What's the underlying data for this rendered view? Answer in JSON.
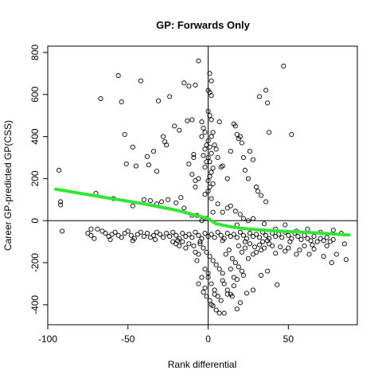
{
  "chart_data": {
    "type": "scatter",
    "title": "GP: Forwards Only",
    "xlabel": "Rank differential",
    "ylabel": "Career GP-predicted GP(CSS)",
    "xlim": [
      -100,
      93
    ],
    "ylim": [
      -495,
      830
    ],
    "x_ticks": [
      -100,
      -50,
      0,
      50
    ],
    "y_ticks": [
      -400,
      -200,
      0,
      200,
      400,
      600,
      800
    ],
    "x_tick_labels": [
      "-100",
      "-50",
      "0",
      "50"
    ],
    "y_tick_labels": [
      "-400",
      "-200",
      "0",
      "200",
      "400",
      "600",
      "800"
    ],
    "reference_lines": {
      "vertical_x": 0,
      "horizontal_y": 0
    },
    "grid": false,
    "legend": "none",
    "colors": {
      "points": "#000000",
      "trend": "#33e633"
    },
    "series": [
      {
        "kind": "points",
        "marker": "open-circle",
        "points": [
          [
            -93,
            240
          ],
          [
            -92,
            90
          ],
          [
            -92,
            75
          ],
          [
            -91,
            -50
          ],
          [
            -67,
            580
          ],
          [
            -56,
            690
          ],
          [
            -54,
            565
          ],
          [
            -52,
            410
          ],
          [
            -51,
            270
          ],
          [
            -47,
            350
          ],
          [
            -45,
            260
          ],
          [
            -42,
            665
          ],
          [
            -38,
            305
          ],
          [
            -37,
            265
          ],
          [
            -34,
            330
          ],
          [
            -31,
            570
          ],
          [
            -32,
            235
          ],
          [
            -28,
            400
          ],
          [
            -27,
            375
          ],
          [
            -26,
            360
          ],
          [
            -24,
            590
          ],
          [
            -21,
            450
          ],
          [
            -18,
            430
          ],
          [
            -15,
            655
          ],
          [
            -12,
            640
          ],
          [
            -8,
            645
          ],
          [
            -13,
            475
          ],
          [
            -10,
            480
          ],
          [
            -8,
            190
          ],
          [
            -6,
            200
          ],
          [
            -9,
            315
          ],
          [
            -9,
            300
          ],
          [
            -12,
            270
          ],
          [
            -10,
            220
          ],
          [
            -8,
            160
          ],
          [
            -6,
            760
          ],
          [
            -4,
            470
          ],
          [
            -3,
            440
          ],
          [
            -2,
            420
          ],
          [
            -4,
            400
          ],
          [
            -1,
            360
          ],
          [
            -2,
            340
          ],
          [
            -3,
            310
          ],
          [
            -1,
            280
          ],
          [
            -2,
            255
          ],
          [
            1,
            700
          ],
          [
            2,
            665
          ],
          [
            0,
            620
          ],
          [
            1,
            610
          ],
          [
            2,
            595
          ],
          [
            0,
            520
          ],
          [
            1,
            500
          ],
          [
            2,
            480
          ],
          [
            3,
            420
          ],
          [
            2,
            400
          ],
          [
            0,
            380
          ],
          [
            1,
            350
          ],
          [
            2,
            320
          ],
          [
            0,
            300
          ],
          [
            1,
            280
          ],
          [
            3,
            250
          ],
          [
            2,
            230
          ],
          [
            1,
            210
          ],
          [
            0,
            190
          ],
          [
            3,
            175
          ],
          [
            1,
            160
          ],
          [
            0,
            140
          ],
          [
            -2,
            125
          ],
          [
            2,
            105
          ],
          [
            4,
            360
          ],
          [
            5,
            340
          ],
          [
            6,
            300
          ],
          [
            7,
            470
          ],
          [
            8,
            255
          ],
          [
            9,
            260
          ],
          [
            12,
            200
          ],
          [
            14,
            330
          ],
          [
            16,
            460
          ],
          [
            17,
            450
          ],
          [
            18,
            410
          ],
          [
            20,
            400
          ],
          [
            19,
            390
          ],
          [
            21,
            370
          ],
          [
            22,
            300
          ],
          [
            23,
            240
          ],
          [
            25,
            200
          ],
          [
            26,
            330
          ],
          [
            28,
            290
          ],
          [
            30,
            160
          ],
          [
            32,
            590
          ],
          [
            36,
            620
          ],
          [
            37,
            560
          ],
          [
            38,
            420
          ],
          [
            33,
            120
          ],
          [
            31,
            140
          ],
          [
            36,
            90
          ],
          [
            47,
            735
          ],
          [
            52,
            410
          ],
          [
            -70,
            130
          ],
          [
            -59,
            105
          ],
          [
            -47,
            70
          ],
          [
            -40,
            100
          ],
          [
            -36,
            95
          ],
          [
            -32,
            80
          ],
          [
            -29,
            90
          ],
          [
            -25,
            100
          ],
          [
            -20,
            85
          ],
          [
            -17,
            110
          ],
          [
            -15,
            60
          ],
          [
            -10,
            25
          ],
          [
            -7,
            25
          ],
          [
            -4,
            0
          ],
          [
            -1,
            10
          ],
          [
            3,
            40
          ],
          [
            6,
            80
          ],
          [
            9,
            40
          ],
          [
            12,
            60
          ],
          [
            14,
            70
          ],
          [
            17,
            45
          ],
          [
            20,
            30
          ],
          [
            22,
            10
          ],
          [
            25,
            0
          ],
          [
            18,
            -20
          ],
          [
            28,
            10
          ],
          [
            35,
            -15
          ],
          [
            42,
            -40
          ],
          [
            48,
            -20
          ],
          [
            55,
            -50
          ],
          [
            62,
            -40
          ],
          [
            70,
            -55
          ],
          [
            78,
            -45
          ],
          [
            83,
            -60
          ],
          [
            -75,
            -60
          ],
          [
            -73,
            -70
          ],
          [
            -71,
            -85
          ],
          [
            -69,
            -40
          ],
          [
            -66,
            -50
          ],
          [
            -64,
            -60
          ],
          [
            -62,
            -75
          ],
          [
            -60,
            -65
          ],
          [
            -58,
            -55
          ],
          [
            -56,
            -70
          ],
          [
            -54,
            -80
          ],
          [
            -52,
            -60
          ],
          [
            -50,
            -50
          ],
          [
            -48,
            -70
          ],
          [
            -46,
            -85
          ],
          [
            -44,
            -65
          ],
          [
            -42,
            -55
          ],
          [
            -40,
            -75
          ],
          [
            -38,
            -60
          ],
          [
            -36,
            -80
          ],
          [
            -34,
            -70
          ],
          [
            -32,
            -55
          ],
          [
            -30,
            -65
          ],
          [
            -28,
            -80
          ],
          [
            -26,
            -60
          ],
          [
            -24,
            -75
          ],
          [
            -22,
            -55
          ],
          [
            -20,
            -70
          ],
          [
            -18,
            -85
          ],
          [
            -16,
            -60
          ],
          [
            -14,
            -75
          ],
          [
            -12,
            -65
          ],
          [
            -10,
            -80
          ],
          [
            -8,
            -55
          ],
          [
            -6,
            -70
          ],
          [
            -4,
            -85
          ],
          [
            -2,
            -60
          ],
          [
            0,
            -75
          ],
          [
            2,
            -65
          ],
          [
            4,
            -80
          ],
          [
            6,
            -55
          ],
          [
            8,
            -70
          ],
          [
            10,
            -85
          ],
          [
            12,
            -60
          ],
          [
            14,
            -75
          ],
          [
            16,
            -65
          ],
          [
            18,
            -80
          ],
          [
            20,
            -55
          ],
          [
            22,
            -70
          ],
          [
            24,
            -85
          ],
          [
            26,
            -60
          ],
          [
            28,
            -75
          ],
          [
            30,
            -65
          ],
          [
            32,
            -80
          ],
          [
            34,
            -55
          ],
          [
            36,
            -70
          ],
          [
            38,
            -85
          ],
          [
            40,
            -60
          ],
          [
            42,
            -75
          ],
          [
            44,
            -65
          ],
          [
            46,
            -80
          ],
          [
            48,
            -55
          ],
          [
            50,
            -70
          ],
          [
            52,
            -85
          ],
          [
            54,
            -60
          ],
          [
            56,
            -75
          ],
          [
            58,
            -90
          ],
          [
            60,
            -70
          ],
          [
            62,
            -85
          ],
          [
            64,
            -95
          ],
          [
            66,
            -75
          ],
          [
            68,
            -100
          ],
          [
            70,
            -85
          ],
          [
            72,
            -95
          ],
          [
            74,
            -80
          ],
          [
            76,
            -100
          ],
          [
            78,
            -90
          ],
          [
            -73,
            -40
          ],
          [
            -61,
            -90
          ],
          [
            -47,
            -95
          ],
          [
            -33,
            -90
          ],
          [
            -19,
            -95
          ],
          [
            -5,
            -100
          ],
          [
            9,
            -95
          ],
          [
            23,
            -100
          ],
          [
            37,
            -95
          ],
          [
            51,
            -100
          ],
          [
            65,
            -115
          ],
          [
            -5,
            -110
          ],
          [
            -3,
            -130
          ],
          [
            -1,
            -150
          ],
          [
            1,
            -170
          ],
          [
            3,
            -190
          ],
          [
            5,
            -210
          ],
          [
            7,
            -230
          ],
          [
            9,
            -250
          ],
          [
            11,
            -160
          ],
          [
            13,
            -140
          ],
          [
            15,
            -180
          ],
          [
            17,
            -200
          ],
          [
            19,
            -220
          ],
          [
            21,
            -240
          ],
          [
            -6,
            -160
          ],
          [
            -7,
            -190
          ],
          [
            -8,
            -150
          ],
          [
            -2,
            -230
          ],
          [
            0,
            -270
          ],
          [
            2,
            -300
          ],
          [
            4,
            -330
          ],
          [
            6,
            -360
          ],
          [
            8,
            -380
          ],
          [
            10,
            -300
          ],
          [
            12,
            -330
          ],
          [
            14,
            -350
          ],
          [
            16,
            -310
          ],
          [
            18,
            -280
          ],
          [
            22,
            -260
          ],
          [
            25,
            -180
          ],
          [
            28,
            -160
          ],
          [
            30,
            -150
          ],
          [
            33,
            -140
          ],
          [
            35,
            -130
          ],
          [
            40,
            -120
          ],
          [
            42,
            -155
          ],
          [
            45,
            -125
          ],
          [
            48,
            -145
          ],
          [
            50,
            -130
          ],
          [
            55,
            -160
          ],
          [
            57,
            -140
          ],
          [
            60,
            -120
          ],
          [
            63,
            -160
          ],
          [
            66,
            -135
          ],
          [
            72,
            -170
          ],
          [
            74,
            -120
          ],
          [
            77,
            -200
          ],
          [
            80,
            -160
          ],
          [
            85,
            -110
          ],
          [
            -6,
            -300
          ],
          [
            -3,
            -340
          ],
          [
            -1,
            -360
          ],
          [
            1,
            -380
          ],
          [
            3,
            -405
          ],
          [
            5,
            -425
          ],
          [
            7,
            -440
          ],
          [
            -4,
            -270
          ],
          [
            -2,
            -320
          ],
          [
            0,
            -250
          ],
          [
            2,
            -400
          ],
          [
            4,
            -350
          ],
          [
            10,
            -440
          ],
          [
            12,
            -350
          ],
          [
            15,
            -360
          ],
          [
            18,
            -420
          ],
          [
            20,
            -390
          ],
          [
            24,
            -345
          ],
          [
            33,
            -260
          ],
          [
            37,
            -240
          ],
          [
            43,
            -305
          ],
          [
            -9,
            -120
          ],
          [
            -12,
            -110
          ],
          [
            -14,
            -130
          ],
          [
            -16,
            -100
          ],
          [
            -18,
            -120
          ],
          [
            -20,
            -110
          ],
          [
            -22,
            -100
          ],
          [
            86,
            -185
          ],
          [
            9,
            -285
          ],
          [
            14,
            -230
          ],
          [
            16,
            -270
          ],
          [
            28,
            -330
          ],
          [
            19,
            -120
          ],
          [
            21,
            -150
          ],
          [
            23,
            -130
          ],
          [
            26,
            -110
          ],
          [
            29,
            -125
          ],
          [
            32,
            -115
          ],
          [
            34,
            -100
          ],
          [
            38,
            -110
          ]
        ]
      },
      {
        "kind": "trend",
        "name": "",
        "line": [
          [
            -95,
            150
          ],
          [
            -80,
            130
          ],
          [
            -60,
            105
          ],
          [
            -40,
            80
          ],
          [
            -20,
            50
          ],
          [
            -10,
            30
          ],
          [
            0,
            10
          ],
          [
            5,
            -15
          ],
          [
            15,
            -30
          ],
          [
            25,
            -40
          ],
          [
            40,
            -48
          ],
          [
            60,
            -55
          ],
          [
            75,
            -62
          ],
          [
            88,
            -68
          ]
        ]
      }
    ]
  }
}
